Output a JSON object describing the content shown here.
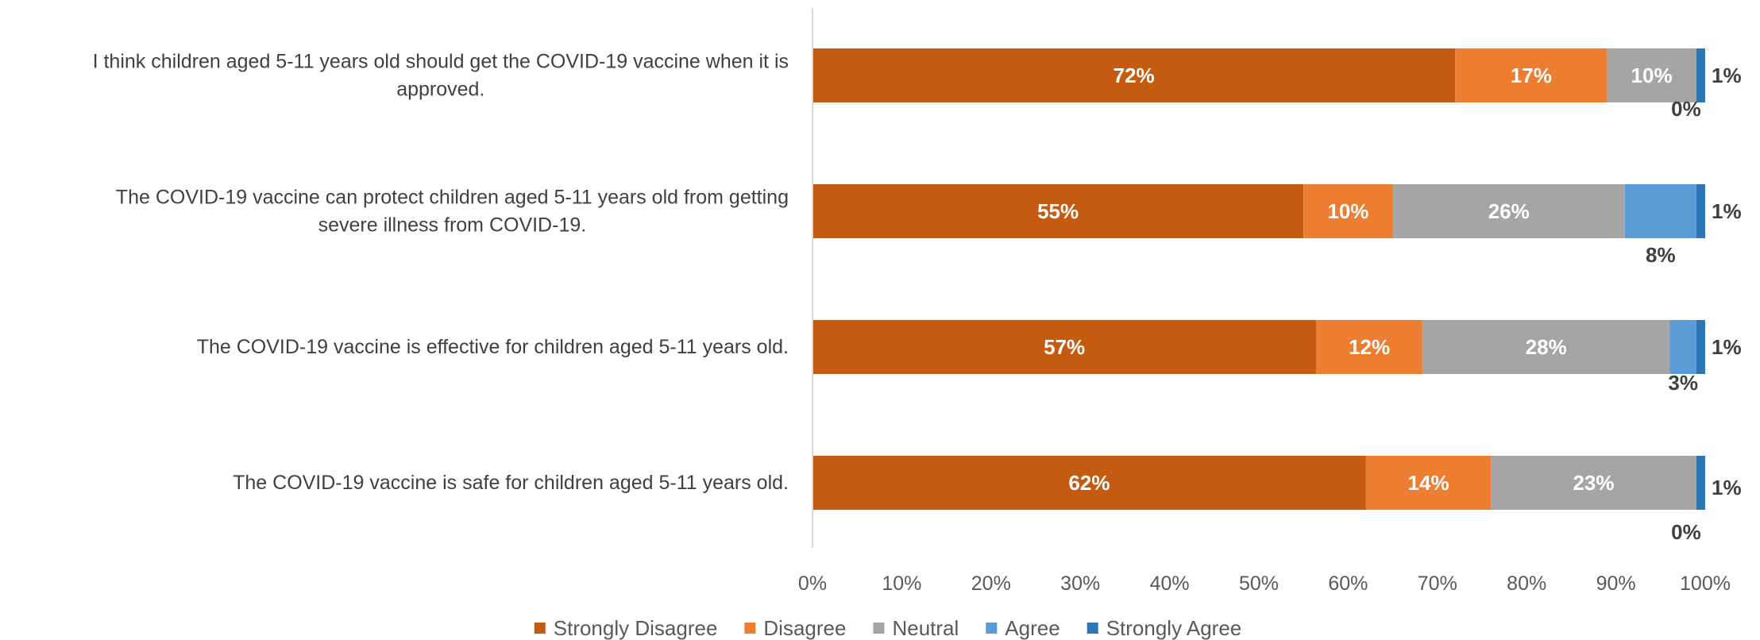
{
  "chart_data": {
    "type": "bar",
    "orientation": "horizontal",
    "stacked": "percent",
    "categories": [
      [
        "I think children aged 5-11 years old should get the COVID-19 vaccine when it is",
        "approved."
      ],
      [
        "The COVID-19 vaccine can protect children aged 5-11 years old from getting",
        "severe illness from COVID-19."
      ],
      [
        "The COVID-19 vaccine is effective for children aged 5-11 years old."
      ],
      [
        "The COVID-19 vaccine is safe for children aged 5-11 years old."
      ]
    ],
    "series": [
      {
        "name": "Strongly Disagree",
        "color": "#C55A11",
        "values": [
          72,
          55,
          57,
          62
        ],
        "labels": [
          "72%",
          "55%",
          "57%",
          "62%"
        ]
      },
      {
        "name": "Disagree",
        "color": "#ED7D31",
        "values": [
          17,
          10,
          12,
          14
        ],
        "labels": [
          "17%",
          "10%",
          "12%",
          "14%"
        ]
      },
      {
        "name": "Neutral",
        "color": "#A5A5A5",
        "values": [
          10,
          26,
          28,
          23
        ],
        "labels": [
          "10%",
          "26%",
          "28%",
          "23%"
        ]
      },
      {
        "name": "Agree",
        "color": "#5B9BD5",
        "values": [
          0,
          8,
          3,
          0
        ],
        "labels": [
          "0%",
          "8%",
          "3%",
          "0%"
        ]
      },
      {
        "name": "Strongly Agree",
        "color": "#2E75B6",
        "values": [
          1,
          1,
          1,
          1
        ],
        "labels": [
          "1%",
          "1%",
          "1%",
          "1%"
        ]
      }
    ],
    "xlim": [
      0,
      100
    ],
    "xticks": [
      "0%",
      "10%",
      "20%",
      "30%",
      "40%",
      "50%",
      "60%",
      "70%",
      "80%",
      "90%",
      "100%"
    ],
    "legend_position": "bottom",
    "grid": false
  }
}
